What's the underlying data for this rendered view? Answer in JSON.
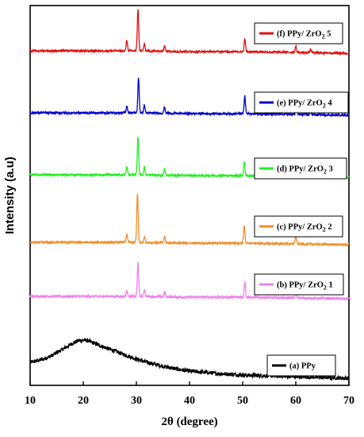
{
  "chart_data": {
    "type": "line",
    "xlabel": "2θ (degree)",
    "ylabel": "Intensity (a.u)",
    "xlim": [
      10,
      70
    ],
    "x_ticks": [
      10,
      20,
      30,
      40,
      50,
      60,
      70
    ],
    "grid": false,
    "legend_placement": "per-curve, right",
    "series": [
      {
        "name": "(a) PPy",
        "color": "#000000",
        "offset": 0,
        "noise": 2.5,
        "points": [
          [
            10,
            22
          ],
          [
            12,
            25
          ],
          [
            14,
            30
          ],
          [
            16,
            38
          ],
          [
            18,
            46
          ],
          [
            19,
            49
          ],
          [
            20,
            50
          ],
          [
            21,
            49
          ],
          [
            22,
            46
          ],
          [
            24,
            41
          ],
          [
            26,
            36
          ],
          [
            28,
            31
          ],
          [
            30,
            26
          ],
          [
            32,
            22
          ],
          [
            35,
            17
          ],
          [
            38,
            13
          ],
          [
            40,
            11
          ],
          [
            45,
            8
          ],
          [
            50,
            6
          ],
          [
            55,
            5
          ],
          [
            60,
            4
          ],
          [
            65,
            3
          ],
          [
            70,
            2
          ]
        ],
        "peaks": []
      },
      {
        "name": "(b) PPy/ ZrO2 1",
        "color": "#ee82ee",
        "offset": 100,
        "noise": 1.5,
        "points": [
          [
            10,
            5
          ],
          [
            20,
            5
          ],
          [
            30,
            5
          ],
          [
            40,
            4
          ],
          [
            50,
            4
          ],
          [
            60,
            3
          ],
          [
            70,
            2
          ]
        ],
        "peaks": [
          [
            28.2,
            7
          ],
          [
            30.3,
            43
          ],
          [
            31.5,
            9
          ],
          [
            35.3,
            6
          ],
          [
            50.4,
            20
          ],
          [
            60.0,
            9
          ]
        ]
      },
      {
        "name": "(c) PPy/ ZrO2 2",
        "color": "#f28c28",
        "offset": 168,
        "noise": 1.2,
        "points": [
          [
            10,
            5
          ],
          [
            20,
            5
          ],
          [
            30,
            5
          ],
          [
            40,
            4
          ],
          [
            50,
            4
          ],
          [
            60,
            3
          ],
          [
            70,
            2
          ]
        ],
        "peaks": [
          [
            28.2,
            10
          ],
          [
            30.2,
            62
          ],
          [
            31.5,
            8
          ],
          [
            35.3,
            8
          ],
          [
            50.3,
            22
          ],
          [
            60.0,
            11
          ]
        ]
      },
      {
        "name": "(d) PPy/ ZrO2 3",
        "color": "#22ee22",
        "offset": 253,
        "noise": 1.3,
        "points": [
          [
            10,
            5
          ],
          [
            20,
            5
          ],
          [
            30,
            5
          ],
          [
            40,
            4
          ],
          [
            50,
            4
          ],
          [
            60,
            3
          ],
          [
            70,
            2
          ]
        ],
        "peaks": [
          [
            28.2,
            10
          ],
          [
            30.3,
            48
          ],
          [
            31.5,
            10
          ],
          [
            35.3,
            8
          ],
          [
            50.3,
            18
          ],
          [
            60.0,
            8
          ],
          [
            62.8,
            4
          ]
        ]
      },
      {
        "name": "(e) PPy/ ZrO2 4",
        "color": "#0000cc",
        "offset": 331,
        "noise": 1.3,
        "points": [
          [
            10,
            5
          ],
          [
            20,
            5
          ],
          [
            30,
            5
          ],
          [
            40,
            4
          ],
          [
            50,
            4
          ],
          [
            60,
            3
          ],
          [
            70,
            2
          ]
        ],
        "peaks": [
          [
            28.2,
            9
          ],
          [
            30.4,
            44
          ],
          [
            31.5,
            10
          ],
          [
            35.3,
            8
          ],
          [
            50.4,
            22
          ],
          [
            60.1,
            10
          ],
          [
            62.8,
            4
          ]
        ]
      },
      {
        "name": "(f) PPy/ ZrO2 5",
        "color": "#dd1111",
        "offset": 409,
        "noise": 1.2,
        "points": [
          [
            10,
            5
          ],
          [
            20,
            5
          ],
          [
            30,
            5
          ],
          [
            40,
            4
          ],
          [
            50,
            4
          ],
          [
            60,
            3
          ],
          [
            70,
            2
          ]
        ],
        "peaks": [
          [
            28.2,
            13
          ],
          [
            30.3,
            53
          ],
          [
            31.5,
            9
          ],
          [
            35.3,
            8
          ],
          [
            50.4,
            17
          ],
          [
            60.0,
            8
          ],
          [
            62.8,
            4
          ]
        ]
      }
    ],
    "legends": [
      {
        "label": "(f) PPy/ ZrO",
        "sub": "2",
        "suffix": " 5",
        "color": "#dd1111"
      },
      {
        "label": "(e) PPy/ ZrO",
        "sub": "2",
        "suffix": " 4",
        "color": "#0000cc"
      },
      {
        "label": "(d) PPy/ ZrO",
        "sub": "2",
        "suffix": " 3",
        "color": "#22ee22"
      },
      {
        "label": "(c) PPy/ ZrO",
        "sub": "2",
        "suffix": " 2",
        "color": "#f28c28"
      },
      {
        "label": "(b) PPy/ ZrO",
        "sub": "2",
        "suffix": " 1",
        "color": "#ee82ee"
      },
      {
        "label": "(a) PPy",
        "sub": "",
        "suffix": "",
        "color": "#000000"
      }
    ]
  }
}
